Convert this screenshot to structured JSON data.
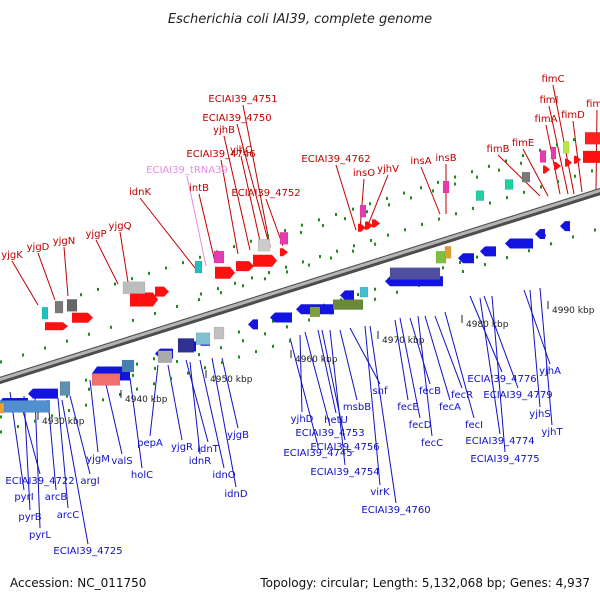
{
  "title": "Escherichia coli IAI39, complete genome",
  "footer": {
    "accession": "Accession: NC_011750",
    "topology": "Topology: circular; Length: 5,132,068 bp; Genes: 4,937"
  },
  "colors": {
    "forward_label": "#c00000",
    "reverse_label": "#1010c8",
    "rna_label": "#e68ce6",
    "forward_gene": "#ff1010",
    "reverse_gene": "#1414e0",
    "backbone": "#8a8a8a"
  },
  "ticks": [
    {
      "label": "4930 kbp"
    },
    {
      "label": "4940 kbp"
    },
    {
      "label": "4950 kbp"
    },
    {
      "label": "4960 kbp"
    },
    {
      "label": "4970 kbp"
    },
    {
      "label": "4980 kbp"
    },
    {
      "label": "4990 kbp"
    }
  ],
  "labels_top": [
    {
      "text": "yjgK",
      "strand": "forward"
    },
    {
      "text": "yjgD",
      "strand": "forward"
    },
    {
      "text": "yjgN",
      "strand": "forward"
    },
    {
      "text": "yjgP",
      "strand": "forward"
    },
    {
      "text": "yjgQ",
      "strand": "forward"
    },
    {
      "text": "idnK",
      "strand": "forward"
    },
    {
      "text": "ECIAI39_tRNA39",
      "strand": "rna"
    },
    {
      "text": "intB",
      "strand": "forward"
    },
    {
      "text": "ECIAI39_4746",
      "strand": "forward"
    },
    {
      "text": "yjhB",
      "strand": "forward"
    },
    {
      "text": "ECIAI39_4750",
      "strand": "forward"
    },
    {
      "text": "ECIAI39_4751",
      "strand": "forward"
    },
    {
      "text": "yjhC",
      "strand": "forward"
    },
    {
      "text": "ECIAI39_4752",
      "strand": "forward"
    },
    {
      "text": "ECIAI39_4762",
      "strand": "forward"
    },
    {
      "text": "insO",
      "strand": "forward"
    },
    {
      "text": "yjhV",
      "strand": "forward"
    },
    {
      "text": "insA",
      "strand": "forward"
    },
    {
      "text": "insB",
      "strand": "forward"
    },
    {
      "text": "fimB",
      "strand": "forward"
    },
    {
      "text": "fimE",
      "strand": "forward"
    },
    {
      "text": "fimA",
      "strand": "forward"
    },
    {
      "text": "fimI",
      "strand": "forward"
    },
    {
      "text": "fimC",
      "strand": "forward"
    },
    {
      "text": "fimD",
      "strand": "forward"
    },
    {
      "text": "fimF",
      "strand": "forward"
    }
  ],
  "labels_bottom": [
    {
      "text": "ECIAI39_4722"
    },
    {
      "text": "pyrI"
    },
    {
      "text": "pyrB"
    },
    {
      "text": "pyrL"
    },
    {
      "text": "arcB"
    },
    {
      "text": "arcC"
    },
    {
      "text": "ECIAI39_4725"
    },
    {
      "text": "argI"
    },
    {
      "text": "yjgM"
    },
    {
      "text": "valS"
    },
    {
      "text": "holC"
    },
    {
      "text": "pepA"
    },
    {
      "text": "yjgR"
    },
    {
      "text": "idnT"
    },
    {
      "text": "idnR"
    },
    {
      "text": "idnO"
    },
    {
      "text": "idnD"
    },
    {
      "text": "yjgB"
    },
    {
      "text": "ECIAI39_4745"
    },
    {
      "text": "yjhD"
    },
    {
      "text": "ECIAI39_4753"
    },
    {
      "text": "hetU"
    },
    {
      "text": "ECIAI39_4756"
    },
    {
      "text": "ECIAI39_4754"
    },
    {
      "text": "msbB"
    },
    {
      "text": "shf"
    },
    {
      "text": "virK"
    },
    {
      "text": "ECIAI39_4760"
    },
    {
      "text": "fecE"
    },
    {
      "text": "fecD"
    },
    {
      "text": "fecB"
    },
    {
      "text": "fecC"
    },
    {
      "text": "fecA"
    },
    {
      "text": "fecR"
    },
    {
      "text": "fecI"
    },
    {
      "text": "ECIAI39_4776"
    },
    {
      "text": "ECIAI39_4779"
    },
    {
      "text": "ECIAI39_4774"
    },
    {
      "text": "ECIAI39_4775"
    },
    {
      "text": "yjhA"
    },
    {
      "text": "yjhS"
    },
    {
      "text": "yjhT"
    }
  ]
}
